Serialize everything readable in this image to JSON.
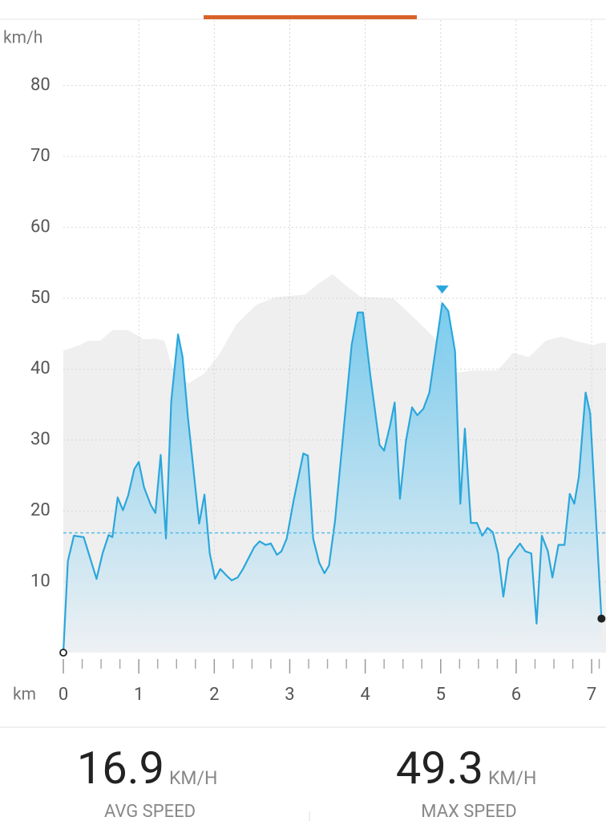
{
  "chart_data": {
    "type": "area",
    "y_unit_label": "km/h",
    "x_unit_label": "km",
    "xlim": [
      0,
      7.19
    ],
    "ylim": [
      0,
      89.25
    ],
    "xticks": [
      0,
      1,
      2,
      3,
      4,
      5,
      6,
      7
    ],
    "xminor_ticks": [
      0.25,
      0.5,
      0.75,
      1.25,
      1.5,
      1.75,
      2.25,
      2.5,
      2.75,
      3.25,
      3.5,
      3.75,
      4.25,
      4.5,
      4.75,
      5.25,
      5.5,
      5.75,
      6.25,
      6.5,
      6.75,
      7.1
    ],
    "yticks": [
      10,
      20,
      30,
      40,
      50,
      60,
      70,
      80
    ],
    "grid": true,
    "color": "#2aa7dc",
    "x": [
      0,
      0.06,
      0.14,
      0.27,
      0.44,
      0.52,
      0.6,
      0.65,
      0.72,
      0.79,
      0.86,
      0.94,
      1.0,
      1.07,
      1.16,
      1.22,
      1.29,
      1.36,
      1.43,
      1.52,
      1.58,
      1.65,
      1.8,
      1.87,
      1.94,
      2.01,
      2.08,
      2.16,
      2.23,
      2.31,
      2.38,
      2.53,
      2.6,
      2.68,
      2.75,
      2.83,
      2.89,
      2.96,
      3.05,
      3.18,
      3.24,
      3.31,
      3.39,
      3.46,
      3.52,
      3.6,
      3.82,
      3.9,
      3.97,
      4.07,
      4.19,
      4.25,
      4.33,
      4.39,
      4.46,
      4.54,
      4.62,
      4.69,
      4.77,
      4.85,
      5.02,
      5.1,
      5.19,
      5.26,
      5.32,
      5.4,
      5.48,
      5.55,
      5.62,
      5.69,
      5.76,
      5.83,
      5.9,
      6.05,
      6.12,
      6.2,
      6.27,
      6.34,
      6.42,
      6.48,
      6.56,
      6.64,
      6.71,
      6.77,
      6.83,
      6.92,
      6.98,
      7.13
    ],
    "values": [
      0,
      12.9,
      16.5,
      16.3,
      10.4,
      14,
      16.6,
      16.3,
      21.9,
      20.1,
      22.2,
      25.9,
      26.9,
      23.3,
      20.8,
      19.7,
      27.9,
      16.1,
      35.5,
      44.9,
      41.7,
      33.3,
      18.2,
      22.3,
      14,
      10.4,
      11.8,
      10.9,
      10.2,
      10.6,
      11.8,
      14.9,
      15.7,
      15.2,
      15.4,
      13.8,
      14.3,
      16.1,
      21.4,
      28.1,
      27.8,
      16.1,
      12.7,
      11.2,
      12.3,
      18.6,
      43.4,
      48,
      48,
      38.9,
      29.3,
      28.5,
      32.1,
      35.3,
      21.7,
      29.9,
      34.6,
      33.5,
      34.4,
      36.7,
      49.3,
      48.2,
      42.5,
      21,
      31.6,
      18.3,
      18.3,
      16.5,
      17.6,
      17,
      14,
      7.9,
      13.2,
      15.4,
      14.3,
      14,
      4.1,
      16.5,
      14.3,
      10.6,
      15.2,
      15.2,
      22.4,
      21,
      24.8,
      36.7,
      33.8,
      4.8
    ],
    "elevation": {
      "color": "#efefef",
      "x": [
        0,
        0.22,
        0.33,
        0.49,
        0.65,
        0.86,
        1.07,
        1.23,
        1.34,
        1.45,
        1.66,
        1.87,
        2.08,
        2.29,
        2.56,
        2.83,
        3.2,
        3.36,
        3.57,
        3.73,
        3.94,
        4.37,
        4.63,
        4.9,
        5.22,
        5.43,
        5.75,
        5.96,
        6.17,
        6.39,
        6.6,
        6.81,
        7.02,
        7.13
      ],
      "values": [
        42.6,
        43.4,
        44,
        44,
        45.5,
        45.5,
        44.2,
        44.3,
        44,
        40,
        38,
        39.4,
        42.3,
        46.3,
        49.1,
        50.2,
        50.5,
        51.9,
        53.4,
        51.9,
        50.2,
        50,
        47.4,
        44.6,
        39.5,
        39.8,
        39.8,
        42.3,
        41.7,
        44,
        44.6,
        43.9,
        43.4,
        43.7
      ]
    }
  },
  "stats": {
    "avg": {
      "value": 16.9,
      "unit": "KM/H",
      "label": "AVG SPEED"
    },
    "max": {
      "value": 49.3,
      "unit": "KM/H",
      "label": "MAX SPEED"
    }
  }
}
